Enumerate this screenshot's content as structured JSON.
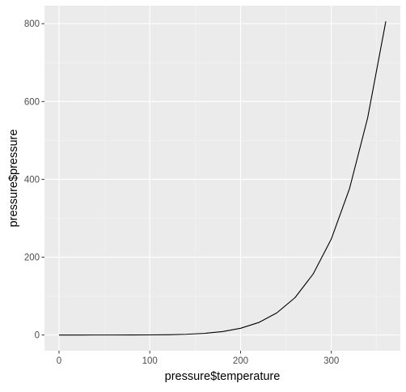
{
  "chart_data": {
    "type": "line",
    "title": "",
    "xlabel": "pressure$temperature",
    "ylabel": "pressure$pressure",
    "x": [
      0,
      20,
      40,
      60,
      80,
      100,
      120,
      140,
      160,
      180,
      200,
      220,
      240,
      260,
      280,
      300,
      320,
      340,
      360
    ],
    "y": [
      0.0002,
      0.0012,
      0.006,
      0.03,
      0.09,
      0.27,
      0.75,
      1.85,
      4.2,
      8.8,
      17.3,
      32.1,
      57,
      96,
      157,
      247,
      376,
      558,
      806
    ],
    "xlim": [
      -16,
      376
    ],
    "ylim": [
      -40.3,
      846.3
    ],
    "xticks": [
      0,
      100,
      200,
      300
    ],
    "xtick_labels": [
      "0",
      "100",
      "200",
      "300"
    ],
    "yticks": [
      0,
      200,
      400,
      600,
      800
    ],
    "ytick_labels": [
      "0",
      "200",
      "400",
      "600",
      "800"
    ],
    "x_minor": [
      50,
      150,
      250,
      350
    ],
    "y_minor": [
      100,
      300,
      500,
      700
    ],
    "grid": true,
    "legend": "none",
    "colors": {
      "panel": "#ebebeb",
      "grid_major": "#ffffff",
      "grid_minor": "#f5f5f5",
      "line": "#000000",
      "tick": "#333333",
      "tick_label": "#4d4d4d"
    }
  }
}
